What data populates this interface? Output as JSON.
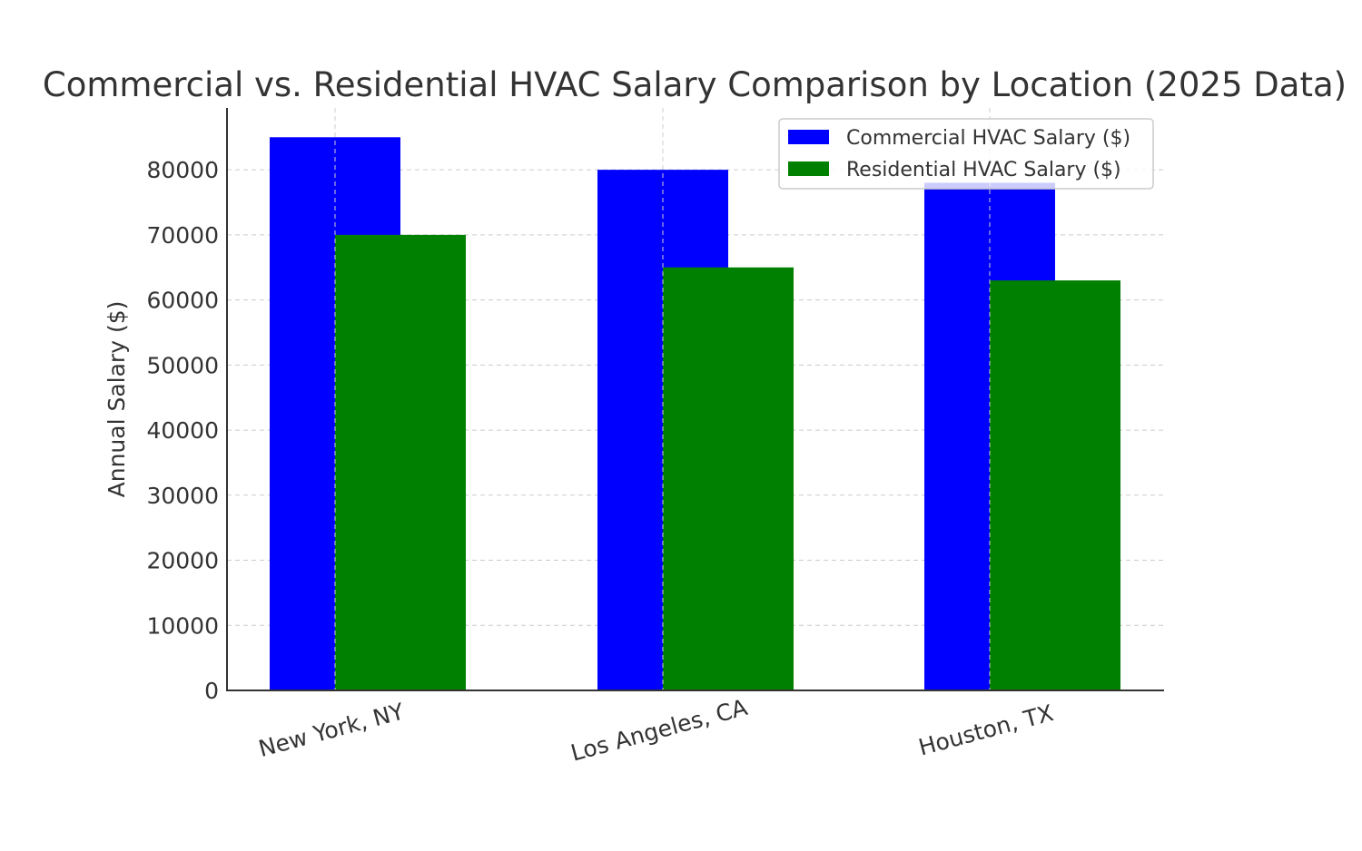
{
  "chart_data": {
    "type": "bar",
    "title": "Commercial vs. Residential HVAC Salary Comparison by Location (2025 Data)",
    "xlabel": "",
    "ylabel": "Annual Salary ($)",
    "categories": [
      "New York, NY",
      "Los Angeles, CA",
      "Houston, TX"
    ],
    "series": [
      {
        "name": "Commercial HVAC Salary ($)",
        "values": [
          85000,
          80000,
          78000
        ],
        "color": "#0000ff"
      },
      {
        "name": "Residential HVAC Salary ($)",
        "values": [
          70000,
          65000,
          63000
        ],
        "color": "#008000"
      }
    ],
    "ylim": [
      0,
      89500
    ],
    "yticks": [
      "0",
      "10000",
      "20000",
      "30000",
      "40000",
      "50000",
      "60000",
      "70000",
      "80000"
    ],
    "grid": true,
    "legend_position": "top-right"
  }
}
